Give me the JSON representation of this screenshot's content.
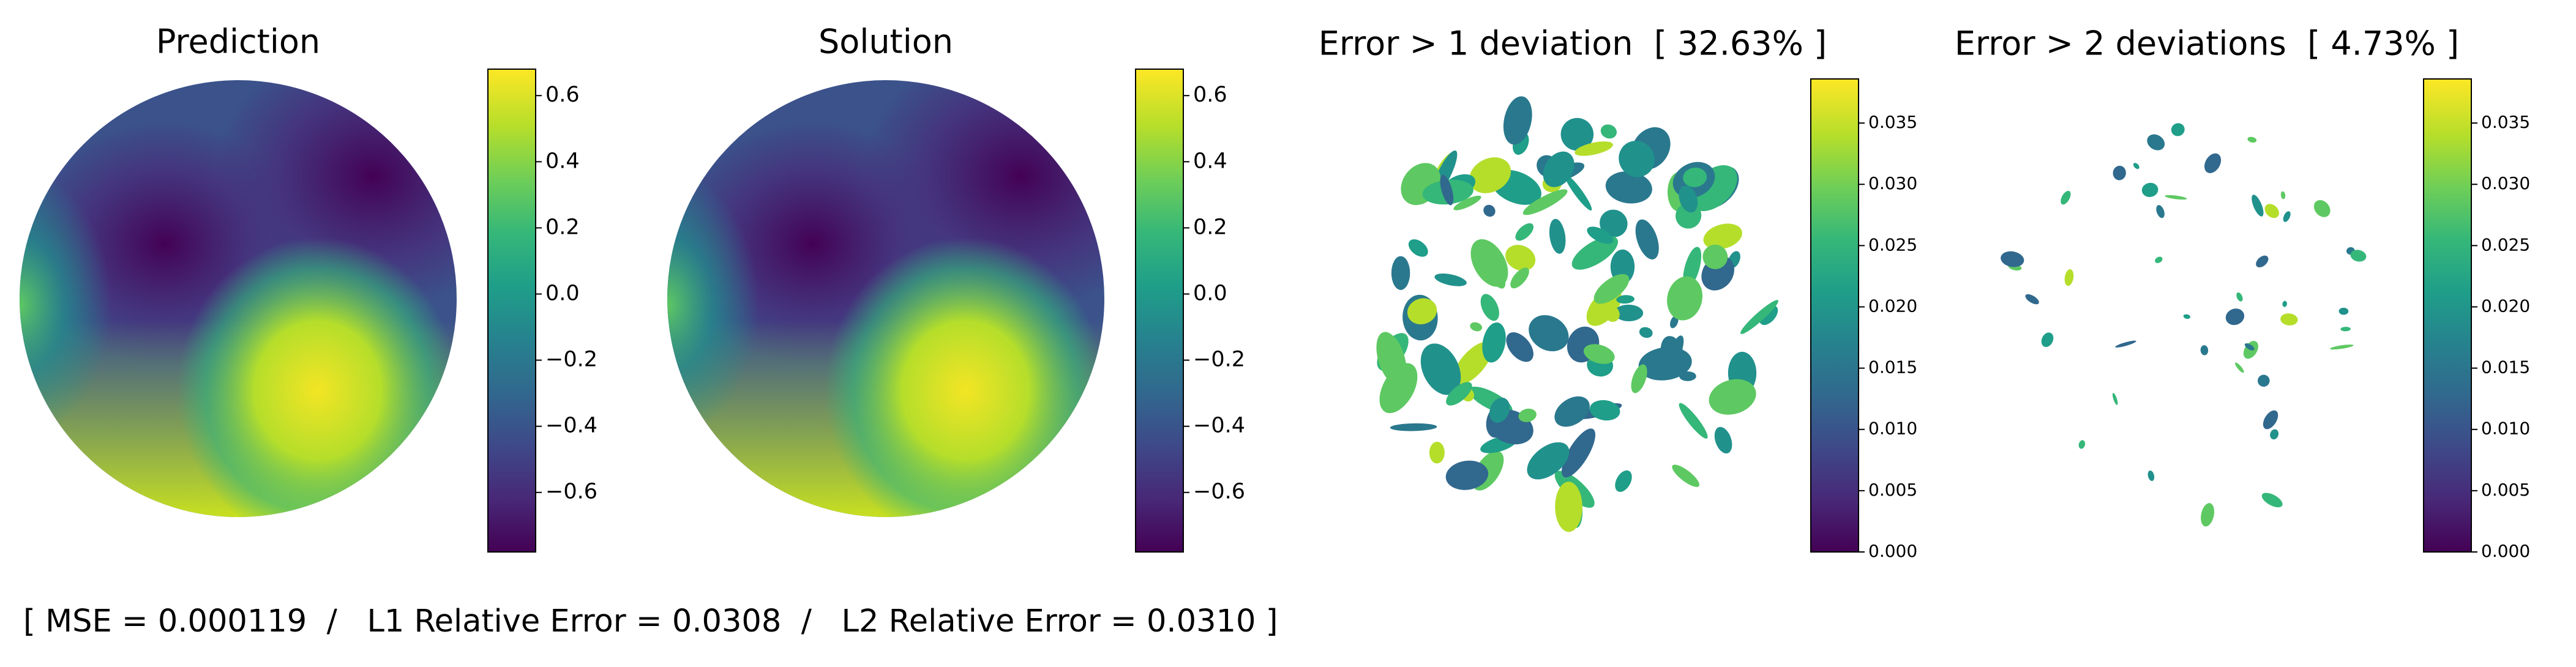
{
  "chart_data": [
    {
      "type": "heatmap",
      "title": "Prediction",
      "clim": [
        -0.78,
        0.68
      ],
      "cticks": [
        {
          "value": -0.6,
          "label": "−0.6"
        },
        {
          "value": -0.4,
          "label": "−0.4"
        },
        {
          "value": -0.2,
          "label": "−0.2"
        },
        {
          "value": 0,
          "label": "0.0"
        },
        0.2,
        0.4,
        0.6
      ]
    },
    {
      "type": "heatmap",
      "title": "Solution",
      "clim": [
        -0.78,
        0.68
      ],
      "cticks": [
        {
          "value": -0.6,
          "label": "−0.6"
        },
        {
          "value": -0.4,
          "label": "−0.4"
        },
        {
          "value": -0.2,
          "label": "−0.2"
        },
        {
          "value": 0,
          "label": "0.0"
        },
        0.2,
        0.4,
        0.6
      ]
    },
    {
      "type": "errormap",
      "title": "Error > 1 deviation  [ 32.63% ]",
      "clim": [
        0,
        0.0386
      ],
      "cticks": [
        {
          "value": 0,
          "label": "0.000"
        },
        0.005,
        {
          "value": 0.01,
          "label": "0.010"
        },
        0.015,
        {
          "value": 0.02,
          "label": "0.020"
        },
        0.025,
        {
          "value": 0.03,
          "label": "0.030"
        },
        0.035
      ]
    },
    {
      "type": "errormap",
      "title": "Error > 2 deviations  [ 4.73% ]",
      "clim": [
        0,
        0.0386
      ],
      "cticks": [
        {
          "value": 0,
          "label": "0.000"
        },
        0.005,
        {
          "value": 0.01,
          "label": "0.010"
        },
        0.015,
        {
          "value": 0.02,
          "label": "0.020"
        },
        0.025,
        {
          "value": 0.03,
          "label": "0.030"
        },
        0.035
      ]
    }
  ],
  "footer": "[ MSE = 0.000119  /   L1 Relative Error = 0.0308  /   L2 Relative Error = 0.0310 ]"
}
